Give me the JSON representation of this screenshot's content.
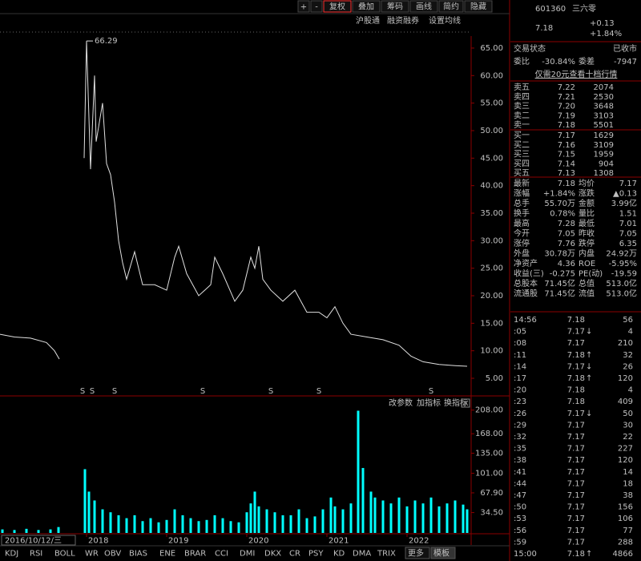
{
  "toolbar": {
    "buttons": [
      "+",
      "-",
      "复权",
      "叠加",
      "筹码",
      "画线",
      "简约",
      "隐藏"
    ],
    "sub_buttons": [
      "沪股通",
      "融资融券",
      "设置均线"
    ]
  },
  "chart_data": {
    "type": "line",
    "color": "#e0e0e0",
    "x": [
      2016.92,
      2017.1,
      2017.3,
      2017.5,
      2017.6,
      2017.66,
      2017.8,
      2017.97,
      2018.0,
      2018.05,
      2018.1,
      2018.12,
      2018.2,
      2018.25,
      2018.3,
      2018.35,
      2018.4,
      2018.45,
      2018.5,
      2018.6,
      2018.7,
      2018.85,
      2019.0,
      2019.1,
      2019.15,
      2019.25,
      2019.4,
      2019.55,
      2019.6,
      2019.7,
      2019.85,
      2019.95,
      2020.05,
      2020.1,
      2020.15,
      2020.2,
      2020.3,
      2020.45,
      2020.6,
      2020.75,
      2020.9,
      2021.0,
      2021.1,
      2021.2,
      2021.3,
      2021.5,
      2021.7,
      2021.9,
      2022.05,
      2022.2,
      2022.4,
      2022.6,
      2022.75
    ],
    "values": [
      13,
      12.5,
      12.3,
      11.5,
      10,
      8.5,
      null,
      45,
      66.29,
      43,
      60,
      48,
      55,
      44,
      42,
      37,
      30,
      26,
      23,
      28,
      22,
      22,
      21,
      27,
      29,
      24,
      20,
      22,
      27,
      24,
      19,
      21,
      27,
      25,
      29,
      23,
      21,
      19,
      21,
      17,
      17,
      16,
      18,
      15,
      13,
      12.5,
      12,
      11,
      9,
      8,
      7.5,
      7.3,
      7.18
    ],
    "annotation": "66.29",
    "xlim": [
      2016.92,
      2022.8
    ],
    "xticks": [
      2018,
      2019,
      2020,
      2021,
      2022
    ],
    "ylim": [
      2.09,
      67.18
    ],
    "yticks": [
      {
        "value": 5,
        "label": "5.00"
      },
      {
        "value": 10,
        "label": "10.00"
      },
      {
        "value": 15,
        "label": "15.00"
      },
      {
        "value": 20,
        "label": "20.00"
      },
      {
        "value": 25,
        "label": "25.00"
      },
      {
        "value": 30,
        "label": "30.00"
      },
      {
        "value": 35,
        "label": "35.00"
      },
      {
        "value": 40,
        "label": "40.00"
      },
      {
        "value": 45,
        "label": "45.00"
      },
      {
        "value": 50,
        "label": "50.00"
      },
      {
        "value": 55,
        "label": "55.00"
      },
      {
        "value": 60,
        "label": "60.00"
      },
      {
        "value": 65,
        "label": "65.00"
      }
    ],
    "signal_label": "S",
    "signal_x": [
      2017.95,
      2018.07,
      2018.35,
      2019.45,
      2020.3,
      2020.9,
      2022.3
    ],
    "volume": {
      "type": "bar",
      "color": "#00ffff",
      "x": [
        2016.95,
        2017.1,
        2017.25,
        2017.4,
        2017.55,
        2017.65,
        2017.98,
        2018.03,
        2018.1,
        2018.2,
        2018.3,
        2018.4,
        2018.5,
        2018.6,
        2018.7,
        2018.8,
        2018.9,
        2019.0,
        2019.1,
        2019.2,
        2019.3,
        2019.4,
        2019.5,
        2019.6,
        2019.7,
        2019.8,
        2019.9,
        2020.0,
        2020.05,
        2020.1,
        2020.15,
        2020.25,
        2020.35,
        2020.45,
        2020.55,
        2020.65,
        2020.75,
        2020.85,
        2020.95,
        2021.05,
        2021.1,
        2021.2,
        2021.3,
        2021.39,
        2021.45,
        2021.55,
        2021.6,
        2021.7,
        2021.8,
        2021.9,
        2022.0,
        2022.1,
        2022.2,
        2022.3,
        2022.4,
        2022.5,
        2022.6,
        2022.7,
        2022.75
      ],
      "values": [
        6,
        5,
        7,
        5,
        6,
        10,
        108,
        70,
        55,
        40,
        35,
        30,
        25,
        30,
        20,
        25,
        18,
        22,
        40,
        30,
        25,
        20,
        22,
        30,
        25,
        20,
        18,
        35,
        50,
        70,
        45,
        40,
        35,
        30,
        30,
        40,
        25,
        28,
        40,
        60,
        45,
        40,
        50,
        207,
        110,
        70,
        60,
        55,
        50,
        60,
        45,
        55,
        50,
        60,
        45,
        50,
        55,
        48,
        40
      ],
      "ylim": [
        0,
        228
      ],
      "yticks": [
        {
          "value": 34.5,
          "label": "34.50"
        },
        {
          "value": 67.9,
          "label": "67.90"
        },
        {
          "value": 101,
          "label": "101.00"
        },
        {
          "value": 135,
          "label": "135.00"
        },
        {
          "value": 168,
          "label": "168.00"
        },
        {
          "value": 208,
          "label": "208.00"
        }
      ],
      "tools": [
        "改参数",
        "加指标",
        "换指标"
      ]
    },
    "cursor_date": "2016/10/12/三"
  },
  "tabs": [
    "KDJ",
    "RSI",
    "BOLL",
    "WR",
    "OBV",
    "BIAS",
    "ENE",
    "BRAR",
    "CCI",
    "DMI",
    "DKX",
    "CR",
    "PSY",
    "KD",
    "DMA",
    "TRIX",
    "更多",
    "模板"
  ],
  "quote": {
    "code": "601360",
    "name": "三六零",
    "price": "7.18",
    "change": "+0.13",
    "change_pct": "+1.84%",
    "status_label": "交易状态",
    "status": "已收市",
    "ratio": [
      {
        "label": "委比",
        "value": "-30.84%",
        "color": "#00e600"
      },
      {
        "label": "委差",
        "value": "-7947",
        "color": "#e0e0e0"
      }
    ],
    "promo": "仅需20元查看十档行情",
    "price_color": "#ff3232",
    "sells": [
      [
        "卖五",
        "7.22",
        "2074"
      ],
      [
        "卖四",
        "7.21",
        "2530"
      ],
      [
        "卖三",
        "7.20",
        "3648"
      ],
      [
        "卖二",
        "7.19",
        "3103"
      ],
      [
        "卖一",
        "7.18",
        "5501"
      ]
    ],
    "buys": [
      [
        "买一",
        "7.17",
        "1629"
      ],
      [
        "买二",
        "7.16",
        "3109"
      ],
      [
        "买三",
        "7.15",
        "1959"
      ],
      [
        "买四",
        "7.14",
        "904"
      ],
      [
        "买五",
        "7.13",
        "1308"
      ]
    ],
    "stats": [
      [
        {
          "label": "最新",
          "value": "7.18",
          "color": "#ff3232"
        },
        {
          "label": "均价",
          "value": "7.17",
          "color": "#ff3232"
        }
      ],
      [
        {
          "label": "涨幅",
          "value": "+1.84%",
          "color": "#ff3232"
        },
        {
          "label": "涨跌",
          "value": "▲0.13",
          "color": "#ff3232"
        }
      ],
      [
        {
          "label": "总手",
          "value": "55.70万",
          "color": "#e0e0e0"
        },
        {
          "label": "金额",
          "value": "3.99亿",
          "color": "#00ffff"
        }
      ],
      [
        {
          "label": "换手",
          "value": "0.78%",
          "color": "#e0e0e0"
        },
        {
          "label": "量比",
          "value": "1.51",
          "color": "#ff3232"
        }
      ],
      [
        {
          "label": "最高",
          "value": "7.28",
          "color": "#ff3232"
        },
        {
          "label": "最低",
          "value": "7.01",
          "color": "#00e600"
        }
      ],
      [
        {
          "label": "今开",
          "value": "7.05",
          "color": "#e0e0e0"
        },
        {
          "label": "昨收",
          "value": "7.05",
          "color": "#e0e0e0"
        }
      ],
      [
        {
          "label": "涨停",
          "value": "7.76",
          "color": "#ff3232"
        },
        {
          "label": "跌停",
          "value": "6.35",
          "color": "#00e600"
        }
      ],
      [
        {
          "label": "外盘",
          "value": "30.78万",
          "color": "#ff3232"
        },
        {
          "label": "内盘",
          "value": "24.92万",
          "color": "#00e600"
        }
      ],
      [
        {
          "label": "净资产",
          "value": "4.36",
          "color": "#e0e0e0"
        },
        {
          "label": "ROE",
          "value": "-5.95%",
          "color": "#e0e0e0"
        }
      ],
      [
        {
          "label": "收益(三)",
          "value": "-0.275",
          "color": "#e0e0e0"
        },
        {
          "label": "PE(动)",
          "value": "-19.59",
          "color": "#e0e0e0"
        }
      ],
      [
        {
          "label": "总股本",
          "value": "71.45亿",
          "color": "#e0e0e0"
        },
        {
          "label": "总值",
          "value": "513.0亿",
          "color": "#e0e0e0"
        }
      ],
      [
        {
          "label": "流通股",
          "value": "71.45亿",
          "color": "#e0e0e0"
        },
        {
          "label": "流值",
          "value": "513.0亿",
          "color": "#e0e0e0"
        }
      ]
    ],
    "ticks": [
      {
        "time": "14:56",
        "price": "7.18",
        "vol": "56",
        "color": "#ff3232"
      },
      {
        "time": ":05",
        "price": "7.17",
        "arrow": "↓",
        "vol": "4",
        "color": "#00e600"
      },
      {
        "time": ":08",
        "price": "7.17",
        "vol": "210",
        "color": "#ff3232"
      },
      {
        "time": ":11",
        "price": "7.18",
        "arrow": "↑",
        "vol": "32",
        "color": "#ff3232"
      },
      {
        "time": ":14",
        "price": "7.17",
        "arrow": "↓",
        "vol": "26",
        "color": "#00e600"
      },
      {
        "time": ":17",
        "price": "7.18",
        "arrow": "↑",
        "vol": "120",
        "color": "#ff3232"
      },
      {
        "time": ":20",
        "price": "7.18",
        "vol": "4",
        "color": "#ff3232"
      },
      {
        "time": ":23",
        "price": "7.18",
        "vol": "409",
        "color": "#ff3232"
      },
      {
        "time": ":26",
        "price": "7.17",
        "arrow": "↓",
        "vol": "50",
        "color": "#00e600"
      },
      {
        "time": ":29",
        "price": "7.17",
        "vol": "30",
        "color": "#00e600"
      },
      {
        "time": ":32",
        "price": "7.17",
        "vol": "22",
        "color": "#00e600"
      },
      {
        "time": ":35",
        "price": "7.17",
        "vol": "227",
        "color": "#00e600"
      },
      {
        "time": ":38",
        "price": "7.17",
        "vol": "120",
        "color": "#00e600"
      },
      {
        "time": ":41",
        "price": "7.17",
        "vol": "14",
        "color": "#00e600"
      },
      {
        "time": ":44",
        "price": "7.17",
        "vol": "18",
        "color": "#00e600"
      },
      {
        "time": ":47",
        "price": "7.17",
        "vol": "38",
        "color": "#00e600"
      },
      {
        "time": ":50",
        "price": "7.17",
        "vol": "156",
        "color": "#00e600"
      },
      {
        "time": ":53",
        "price": "7.17",
        "vol": "106",
        "color": "#00e600"
      },
      {
        "time": ":56",
        "price": "7.17",
        "vol": "77",
        "color": "#00e600"
      },
      {
        "time": ":59",
        "price": "7.17",
        "vol": "288",
        "color": "#00e600"
      },
      {
        "time": "15:00",
        "price": "7.18",
        "arrow": "↑",
        "vol": "4866",
        "color": "#ff3232"
      }
    ]
  }
}
